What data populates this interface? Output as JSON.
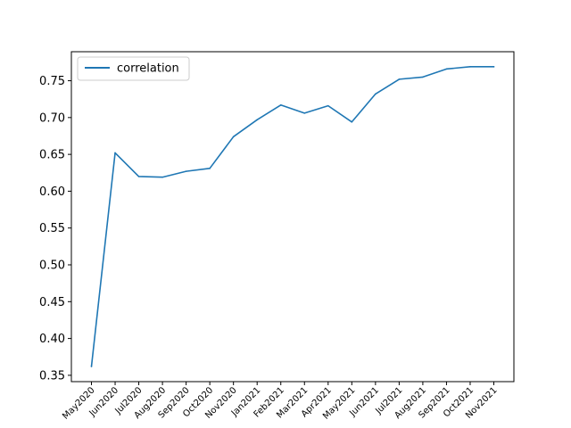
{
  "chart_data": {
    "type": "line",
    "x": [
      "May2020",
      "Jun2020",
      "Jul2020",
      "Aug2020",
      "Sep2020",
      "Oct2020",
      "Nov2020",
      "Jan2021",
      "Feb2021",
      "Mar2021",
      "Apr2021",
      "May2021",
      "Jun2021",
      "Jul2021",
      "Aug2021",
      "Sep2021",
      "Oct2021",
      "Nov2021"
    ],
    "series": [
      {
        "name": "correlation",
        "values": [
          0.362,
          0.652,
          0.62,
          0.619,
          0.627,
          0.631,
          0.674,
          0.697,
          0.717,
          0.706,
          0.716,
          0.694,
          0.732,
          0.752,
          0.755,
          0.766,
          0.769,
          0.769
        ],
        "color": "#1f77b4"
      }
    ],
    "yticks": [
      0.35,
      0.4,
      0.45,
      0.5,
      0.55,
      0.6,
      0.65,
      0.7,
      0.75
    ],
    "ylim": [
      0.3414,
      0.7894
    ],
    "grid": false,
    "legend": "upper-left",
    "title": "",
    "xlabel": "",
    "ylabel": ""
  }
}
